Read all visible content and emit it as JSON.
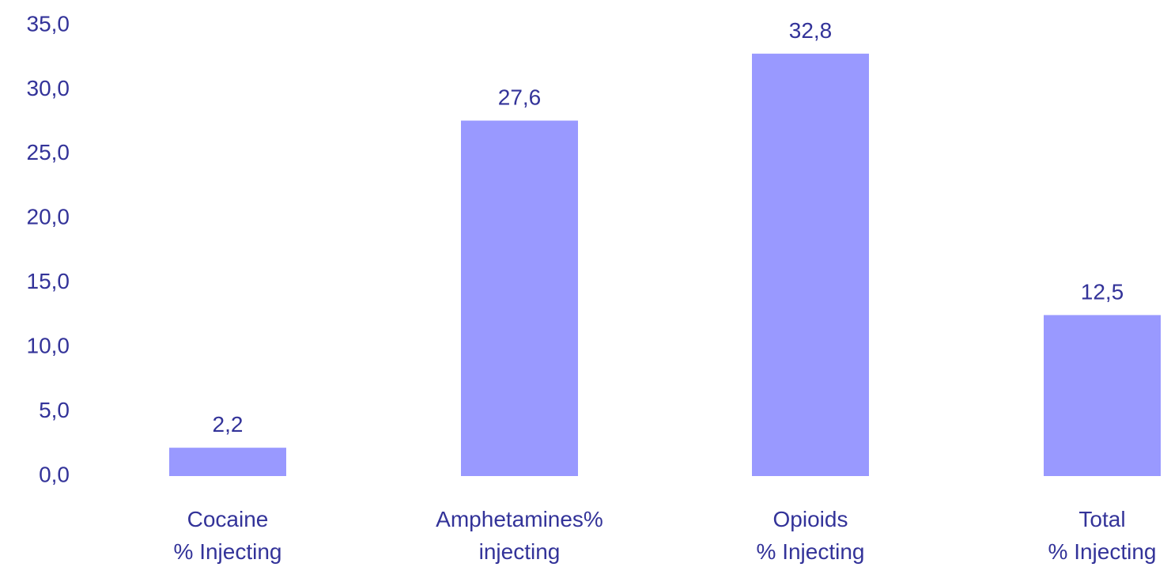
{
  "chart_data": {
    "type": "bar",
    "categories": [
      [
        "Cocaine",
        "% Injecting"
      ],
      [
        "Amphetamines%",
        "injecting"
      ],
      [
        "Opioids",
        "% Injecting"
      ],
      [
        "Total",
        "% Injecting"
      ]
    ],
    "values": [
      2.2,
      27.6,
      32.8,
      12.5
    ],
    "value_labels": [
      "2,2",
      "27,6",
      "32,8",
      "12,5"
    ],
    "yticks": [
      0,
      5,
      10,
      15,
      20,
      25,
      30,
      35
    ],
    "ytick_labels": [
      "0,0",
      "5,0",
      "10,0",
      "15,0",
      "20,0",
      "25,0",
      "30,0",
      "35,0"
    ],
    "ylim": [
      0,
      35
    ],
    "grid": false,
    "legend": false,
    "title": "",
    "xlabel": "",
    "ylabel": "",
    "colors": {
      "bar": "#9999ff",
      "text": "#333399"
    }
  }
}
